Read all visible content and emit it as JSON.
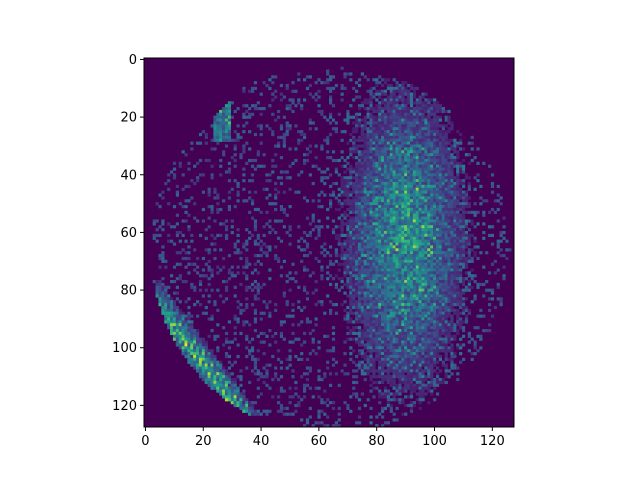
{
  "chart_data": {
    "type": "heatmap",
    "title": "",
    "xlabel": "",
    "ylabel": "",
    "shape": [
      128,
      128
    ],
    "xlim": [
      -0.5,
      127.5
    ],
    "ylim": [
      127.5,
      -0.5
    ],
    "y_axis_inverted": true,
    "x_ticks": [
      0,
      20,
      40,
      60,
      80,
      100,
      120
    ],
    "y_ticks": [
      0,
      20,
      40,
      60,
      80,
      100,
      120
    ],
    "x_tick_labels": [
      "0",
      "20",
      "40",
      "60",
      "80",
      "100",
      "120"
    ],
    "y_tick_labels": [
      "0",
      "20",
      "40",
      "60",
      "80",
      "100",
      "120"
    ],
    "colormap": "viridis",
    "value_range": [
      0,
      1
    ],
    "background_value": 0,
    "grid": false,
    "colorbar": false,
    "regions": [
      {
        "name": "left-outer-edge-streaks",
        "description": "bright diagonal streaks along lower-left boundary",
        "x_range": [
          2,
          36
        ],
        "y_range": [
          78,
          122
        ],
        "peak_value": 0.85
      },
      {
        "name": "upper-left-edge",
        "description": "bright narrow edge near top-left of object",
        "x_range": [
          24,
          30
        ],
        "y_range": [
          10,
          28
        ],
        "peak_value": 0.7
      },
      {
        "name": "right-lobe",
        "description": "broad textured bright region",
        "x_range": [
          70,
          112
        ],
        "y_range": [
          20,
          118
        ],
        "peak_value": 0.65
      },
      {
        "name": "outline-haze",
        "description": "faint speckle tracing object outline",
        "x_range": [
          20,
          124
        ],
        "y_range": [
          0,
          124
        ],
        "peak_value": 0.3
      }
    ]
  }
}
